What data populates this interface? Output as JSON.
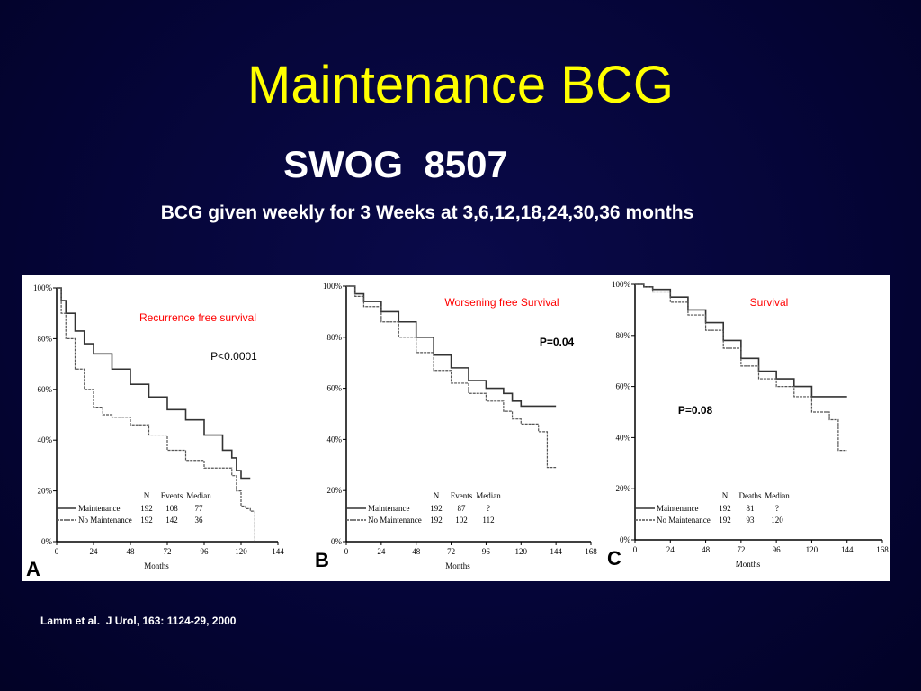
{
  "slide": {
    "title": "Maintenance BCG",
    "subtitle": "SWOG  8507",
    "description": "BCG given weekly for 3 Weeks at 3,6,12,18,24,30,36 months",
    "citation": "Lamm et al.  J Urol, 163: 1124-29, 2000"
  },
  "colors": {
    "background": "#050538",
    "title": "#ffff00",
    "text": "#ffffff",
    "chart_title": "#ff0000",
    "maintenance_line": "#333333",
    "no_maintenance_line": "#555555"
  },
  "chart_data": [
    {
      "type": "line",
      "panel_label": "A",
      "title": "Recurrence free survival",
      "p_value": "P<0.0001",
      "xlabel": "Months",
      "ylabel": "",
      "xlim": [
        0,
        144
      ],
      "ylim": [
        0,
        100
      ],
      "xticks": [
        "0",
        "24",
        "48",
        "72",
        "96",
        "120",
        "144"
      ],
      "yticks": [
        "0%",
        "20%",
        "40%",
        "60%",
        "80%",
        "100%"
      ],
      "table_headers": [
        "N",
        "Events",
        "Median"
      ],
      "series": [
        {
          "name": "Maintenance",
          "n": "192",
          "events": "108",
          "median": "77",
          "x": [
            0,
            3,
            6,
            12,
            18,
            24,
            36,
            48,
            60,
            72,
            84,
            96,
            108,
            114,
            117,
            120,
            126
          ],
          "y": [
            100,
            95,
            90,
            83,
            78,
            74,
            68,
            62,
            57,
            52,
            48,
            42,
            36,
            33,
            28,
            25,
            25
          ]
        },
        {
          "name": "No Maintenance",
          "n": "192",
          "events": "142",
          "median": "36",
          "x": [
            0,
            3,
            6,
            12,
            18,
            24,
            30,
            36,
            48,
            60,
            72,
            84,
            96,
            108,
            114,
            117,
            120,
            123,
            126,
            129
          ],
          "y": [
            100,
            90,
            80,
            68,
            60,
            53,
            50,
            49,
            46,
            42,
            36,
            32,
            29,
            29,
            26,
            20,
            14,
            13,
            12,
            0
          ]
        }
      ]
    },
    {
      "type": "line",
      "panel_label": "B",
      "title": "Worsening free Survival",
      "p_value": "P=0.04",
      "xlabel": "Months",
      "ylabel": "",
      "xlim": [
        0,
        168
      ],
      "ylim": [
        0,
        100
      ],
      "xticks": [
        "0",
        "24",
        "48",
        "72",
        "96",
        "120",
        "144",
        "168"
      ],
      "yticks": [
        "0%",
        "20%",
        "40%",
        "60%",
        "80%",
        "100%"
      ],
      "table_headers": [
        "N",
        "Events",
        "Median"
      ],
      "series": [
        {
          "name": "Maintenance",
          "n": "192",
          "events": "87",
          "median": "?",
          "x": [
            0,
            6,
            12,
            24,
            36,
            48,
            60,
            72,
            84,
            96,
            108,
            114,
            120,
            132,
            144
          ],
          "y": [
            100,
            97,
            94,
            90,
            86,
            80,
            73,
            68,
            63,
            60,
            58,
            55,
            53,
            53,
            53
          ]
        },
        {
          "name": "No Maintenance",
          "n": "192",
          "events": "102",
          "median": "112",
          "x": [
            0,
            6,
            12,
            24,
            36,
            48,
            60,
            72,
            84,
            96,
            108,
            114,
            120,
            132,
            138,
            144
          ],
          "y": [
            100,
            96,
            92,
            86,
            80,
            74,
            67,
            62,
            58,
            55,
            51,
            48,
            46,
            43,
            29,
            29
          ]
        }
      ]
    },
    {
      "type": "line",
      "panel_label": "C",
      "title": "Survival",
      "p_value": "P=0.08",
      "xlabel": "Months",
      "ylabel": "",
      "xlim": [
        0,
        168
      ],
      "ylim": [
        0,
        100
      ],
      "xticks": [
        "0",
        "24",
        "48",
        "72",
        "96",
        "120",
        "144",
        "168"
      ],
      "yticks": [
        "0%",
        "20%",
        "40%",
        "60%",
        "80%",
        "100%"
      ],
      "table_headers": [
        "N",
        "Deaths",
        "Median"
      ],
      "series": [
        {
          "name": "Maintenance",
          "n": "192",
          "events": "81",
          "median": "?",
          "x": [
            0,
            6,
            12,
            24,
            36,
            48,
            60,
            72,
            84,
            96,
            108,
            120,
            132,
            144
          ],
          "y": [
            100,
            99,
            98,
            95,
            90,
            85,
            78,
            71,
            66,
            63,
            60,
            56,
            56,
            56
          ]
        },
        {
          "name": "No Maintenance",
          "n": "192",
          "events": "93",
          "median": "120",
          "x": [
            0,
            6,
            12,
            24,
            36,
            48,
            60,
            72,
            84,
            96,
            108,
            120,
            132,
            138,
            144
          ],
          "y": [
            100,
            99,
            97,
            93,
            88,
            82,
            75,
            68,
            63,
            60,
            56,
            50,
            47,
            35,
            35
          ]
        }
      ]
    }
  ]
}
